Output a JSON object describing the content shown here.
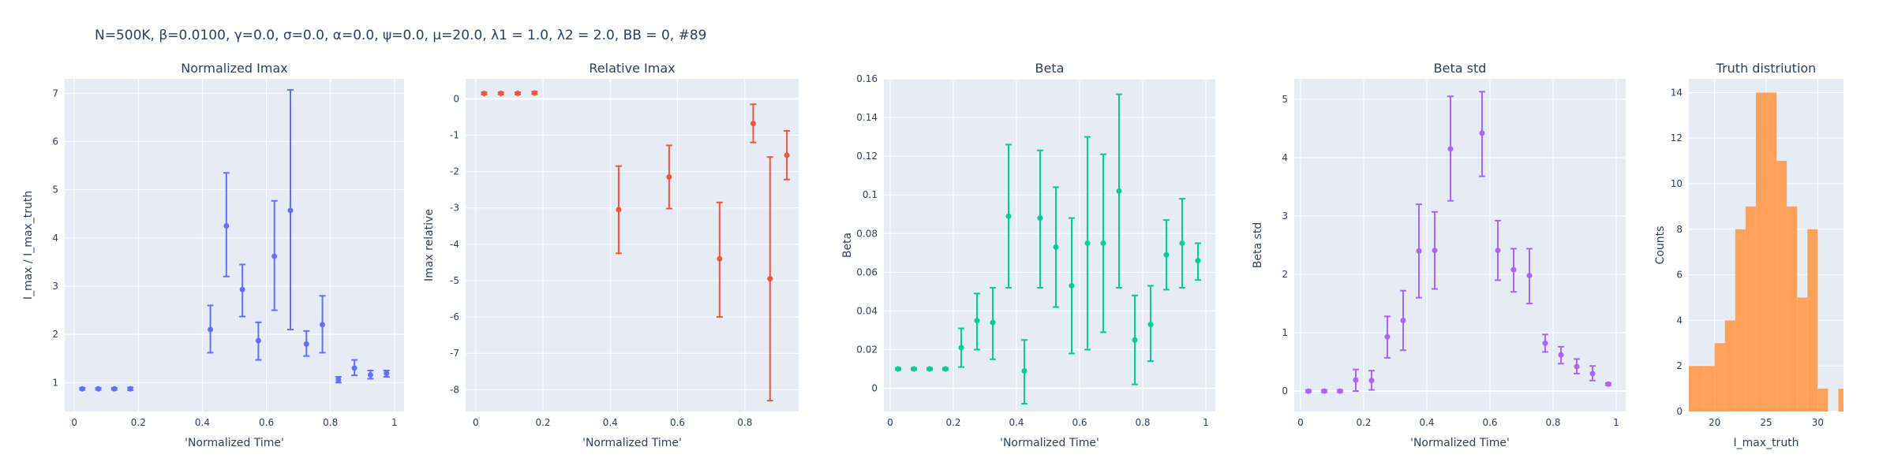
{
  "figure_title": "N=500K, β=0.0100, γ=0.0, σ=0.0,  α=0.0, ψ=0.0, μ=20.0, λ1 = 1.0, λ2 = 2.0, BB = 0, #89",
  "chart_data": [
    {
      "type": "scatter",
      "title": "Normalized Imax",
      "xlabel": "'Normalized Time'",
      "ylabel": "I_max / I_max_truth",
      "xlim": [
        -0.03,
        1.03
      ],
      "ylim": [
        0.4,
        7.3
      ],
      "xticks": [
        0,
        0.2,
        0.4,
        0.6,
        0.8,
        1
      ],
      "yticks": [
        1,
        2,
        3,
        4,
        5,
        6,
        7
      ],
      "color": "#636EFA",
      "grid": true,
      "points": [
        {
          "x": 0.025,
          "y": 0.87,
          "lo": 0.85,
          "hi": 0.89
        },
        {
          "x": 0.075,
          "y": 0.87,
          "lo": 0.85,
          "hi": 0.89
        },
        {
          "x": 0.125,
          "y": 0.87,
          "lo": 0.85,
          "hi": 0.89
        },
        {
          "x": 0.175,
          "y": 0.87,
          "lo": 0.84,
          "hi": 0.9
        },
        {
          "x": 0.425,
          "y": 2.1,
          "lo": 1.62,
          "hi": 2.6
        },
        {
          "x": 0.475,
          "y": 4.25,
          "lo": 3.2,
          "hi": 5.35
        },
        {
          "x": 0.525,
          "y": 2.93,
          "lo": 2.37,
          "hi": 3.45
        },
        {
          "x": 0.575,
          "y": 1.87,
          "lo": 1.47,
          "hi": 2.25
        },
        {
          "x": 0.625,
          "y": 3.62,
          "lo": 2.5,
          "hi": 4.77
        },
        {
          "x": 0.675,
          "y": 4.57,
          "lo": 2.1,
          "hi": 7.07
        },
        {
          "x": 0.725,
          "y": 1.8,
          "lo": 1.55,
          "hi": 2.07
        },
        {
          "x": 0.775,
          "y": 2.2,
          "lo": 1.62,
          "hi": 2.8
        },
        {
          "x": 0.825,
          "y": 1.06,
          "lo": 1.0,
          "hi": 1.12
        },
        {
          "x": 0.875,
          "y": 1.3,
          "lo": 1.15,
          "hi": 1.47
        },
        {
          "x": 0.925,
          "y": 1.16,
          "lo": 1.08,
          "hi": 1.25
        },
        {
          "x": 0.975,
          "y": 1.19,
          "lo": 1.12,
          "hi": 1.25
        }
      ]
    },
    {
      "type": "scatter",
      "title": "Relative Imax",
      "xlabel": "'Normalized Time'",
      "ylabel": "Imax relative",
      "xlim": [
        -0.03,
        0.96
      ],
      "ylim": [
        -8.6,
        0.55
      ],
      "xticks": [
        0,
        0.2,
        0.4,
        0.6,
        0.8
      ],
      "yticks": [
        0,
        -1,
        -2,
        -3,
        -4,
        -5,
        -6,
        -7,
        -8
      ],
      "color": "#EF553B",
      "grid": true,
      "points": [
        {
          "x": 0.025,
          "y": 0.15,
          "lo": 0.12,
          "hi": 0.18
        },
        {
          "x": 0.075,
          "y": 0.15,
          "lo": 0.12,
          "hi": 0.18
        },
        {
          "x": 0.125,
          "y": 0.15,
          "lo": 0.12,
          "hi": 0.18
        },
        {
          "x": 0.175,
          "y": 0.16,
          "lo": 0.13,
          "hi": 0.2
        },
        {
          "x": 0.425,
          "y": -3.05,
          "lo": -4.25,
          "hi": -1.85
        },
        {
          "x": 0.575,
          "y": -2.15,
          "lo": -3.02,
          "hi": -1.28
        },
        {
          "x": 0.725,
          "y": -4.4,
          "lo": -6.0,
          "hi": -2.85
        },
        {
          "x": 0.825,
          "y": -0.68,
          "lo": -1.2,
          "hi": -0.15
        },
        {
          "x": 0.875,
          "y": -4.95,
          "lo": -8.3,
          "hi": -1.6
        },
        {
          "x": 0.925,
          "y": -1.55,
          "lo": -2.22,
          "hi": -0.88
        }
      ]
    },
    {
      "type": "scatter",
      "title": "Beta",
      "xlabel": "'Normalized Time'",
      "ylabel": "Beta",
      "xlim": [
        -0.02,
        1.03
      ],
      "ylim": [
        -0.012,
        0.16
      ],
      "xticks": [
        0,
        0.2,
        0.4,
        0.6,
        0.8,
        1
      ],
      "yticks": [
        0,
        0.02,
        0.04,
        0.06,
        0.08,
        0.1,
        0.12,
        0.14,
        0.16
      ],
      "color": "#00CC96",
      "grid": true,
      "points": [
        {
          "x": 0.025,
          "y": 0.01,
          "lo": 0.0095,
          "hi": 0.0105
        },
        {
          "x": 0.075,
          "y": 0.01,
          "lo": 0.0095,
          "hi": 0.0105
        },
        {
          "x": 0.125,
          "y": 0.01,
          "lo": 0.0095,
          "hi": 0.0105
        },
        {
          "x": 0.175,
          "y": 0.01,
          "lo": 0.0095,
          "hi": 0.0105
        },
        {
          "x": 0.225,
          "y": 0.021,
          "lo": 0.011,
          "hi": 0.031
        },
        {
          "x": 0.275,
          "y": 0.035,
          "lo": 0.02,
          "hi": 0.049
        },
        {
          "x": 0.325,
          "y": 0.034,
          "lo": 0.015,
          "hi": 0.052
        },
        {
          "x": 0.375,
          "y": 0.089,
          "lo": 0.052,
          "hi": 0.126
        },
        {
          "x": 0.425,
          "y": 0.009,
          "lo": -0.008,
          "hi": 0.025
        },
        {
          "x": 0.475,
          "y": 0.088,
          "lo": 0.052,
          "hi": 0.123
        },
        {
          "x": 0.525,
          "y": 0.073,
          "lo": 0.042,
          "hi": 0.104
        },
        {
          "x": 0.575,
          "y": 0.053,
          "lo": 0.018,
          "hi": 0.088
        },
        {
          "x": 0.625,
          "y": 0.075,
          "lo": 0.02,
          "hi": 0.13
        },
        {
          "x": 0.675,
          "y": 0.075,
          "lo": 0.029,
          "hi": 0.121
        },
        {
          "x": 0.725,
          "y": 0.102,
          "lo": 0.052,
          "hi": 0.152
        },
        {
          "x": 0.775,
          "y": 0.025,
          "lo": 0.002,
          "hi": 0.048
        },
        {
          "x": 0.825,
          "y": 0.033,
          "lo": 0.014,
          "hi": 0.053
        },
        {
          "x": 0.875,
          "y": 0.069,
          "lo": 0.051,
          "hi": 0.087
        },
        {
          "x": 0.925,
          "y": 0.075,
          "lo": 0.052,
          "hi": 0.098
        },
        {
          "x": 0.975,
          "y": 0.066,
          "lo": 0.056,
          "hi": 0.075
        }
      ]
    },
    {
      "type": "scatter",
      "title": "Beta std",
      "xlabel": "'Normalized Time'",
      "ylabel": "Beta std",
      "xlim": [
        -0.02,
        1.03
      ],
      "ylim": [
        -0.35,
        5.35
      ],
      "xticks": [
        0,
        0.2,
        0.4,
        0.6,
        0.8,
        1
      ],
      "yticks": [
        0,
        1,
        2,
        3,
        4,
        5
      ],
      "color": "#AB63FA",
      "grid": true,
      "points": [
        {
          "x": 0.025,
          "y": 0.0,
          "lo": -0.02,
          "hi": 0.02
        },
        {
          "x": 0.075,
          "y": 0.0,
          "lo": -0.02,
          "hi": 0.02
        },
        {
          "x": 0.125,
          "y": 0.0,
          "lo": -0.02,
          "hi": 0.02
        },
        {
          "x": 0.175,
          "y": 0.19,
          "lo": 0.0,
          "hi": 0.37
        },
        {
          "x": 0.225,
          "y": 0.18,
          "lo": 0.02,
          "hi": 0.35
        },
        {
          "x": 0.275,
          "y": 0.93,
          "lo": 0.57,
          "hi": 1.28
        },
        {
          "x": 0.325,
          "y": 1.21,
          "lo": 0.7,
          "hi": 1.72
        },
        {
          "x": 0.375,
          "y": 2.4,
          "lo": 1.6,
          "hi": 3.2
        },
        {
          "x": 0.425,
          "y": 2.41,
          "lo": 1.75,
          "hi": 3.07
        },
        {
          "x": 0.475,
          "y": 4.15,
          "lo": 3.26,
          "hi": 5.05
        },
        {
          "x": 0.575,
          "y": 4.42,
          "lo": 3.68,
          "hi": 5.13
        },
        {
          "x": 0.625,
          "y": 2.41,
          "lo": 1.9,
          "hi": 2.92
        },
        {
          "x": 0.675,
          "y": 2.08,
          "lo": 1.7,
          "hi": 2.44
        },
        {
          "x": 0.725,
          "y": 1.98,
          "lo": 1.5,
          "hi": 2.44
        },
        {
          "x": 0.775,
          "y": 0.82,
          "lo": 0.67,
          "hi": 0.97
        },
        {
          "x": 0.825,
          "y": 0.62,
          "lo": 0.47,
          "hi": 0.76
        },
        {
          "x": 0.875,
          "y": 0.42,
          "lo": 0.3,
          "hi": 0.55
        },
        {
          "x": 0.925,
          "y": 0.3,
          "lo": 0.18,
          "hi": 0.43
        },
        {
          "x": 0.975,
          "y": 0.12,
          "lo": 0.1,
          "hi": 0.14
        }
      ]
    },
    {
      "type": "bar",
      "title": "Truth distriution",
      "xlabel": "I_max_truth",
      "ylabel": "Counts",
      "xlim": [
        17.5,
        32.5
      ],
      "ylim": [
        0,
        14.6
      ],
      "xticks": [
        20,
        25,
        30
      ],
      "yticks": [
        0,
        2,
        4,
        6,
        8,
        10,
        12,
        14
      ],
      "color": "#FFA15A",
      "grid": true,
      "bins": [
        {
          "x0": 17.5,
          "x1": 19.0,
          "count": 2
        },
        {
          "x0": 19.0,
          "x1": 20.0,
          "count": 2
        },
        {
          "x0": 20.0,
          "x1": 21.0,
          "count": 3
        },
        {
          "x0": 21.0,
          "x1": 22.0,
          "count": 4
        },
        {
          "x0": 22.0,
          "x1": 23.0,
          "count": 8
        },
        {
          "x0": 23.0,
          "x1": 24.0,
          "count": 9
        },
        {
          "x0": 24.0,
          "x1": 26.0,
          "count": 14
        },
        {
          "x0": 26.0,
          "x1": 27.0,
          "count": 11
        },
        {
          "x0": 27.0,
          "x1": 28.0,
          "count": 9
        },
        {
          "x0": 28.0,
          "x1": 29.0,
          "count": 5
        },
        {
          "x0": 29.0,
          "x1": 30.0,
          "count": 8
        },
        {
          "x0": 30.0,
          "x1": 31.0,
          "count": 1
        },
        {
          "x0": 32.0,
          "x1": 33.0,
          "count": 1
        }
      ]
    }
  ]
}
